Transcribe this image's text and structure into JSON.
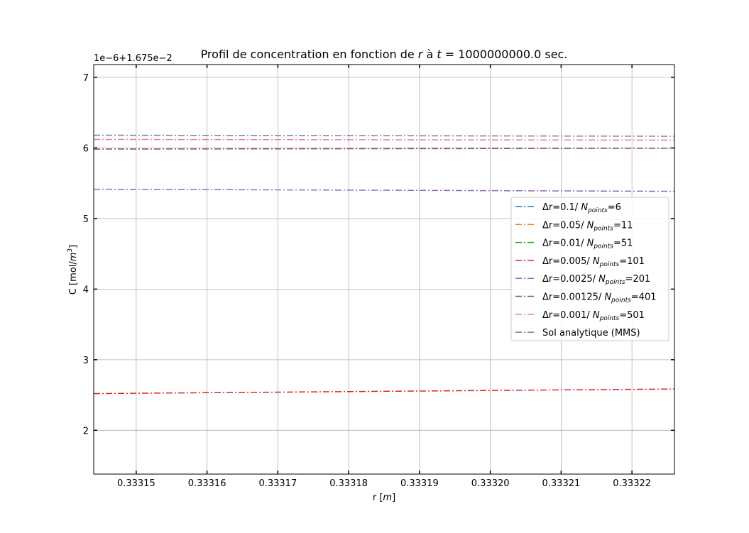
{
  "chart_data": {
    "type": "line",
    "title_prefix": "Profil de concentration en fonction de ",
    "title_r": "r",
    "title_mid": " à ",
    "title_t": "t",
    "title_suffix": " = 1000000000.0 sec.",
    "offset_label": "1e−6+1.675e−2",
    "xlabel_prefix": "r [",
    "xlabel_unit": "m",
    "xlabel_suffix": "]",
    "ylabel_prefix": "C [mol/",
    "ylabel_unit": "m",
    "ylabel_exp": "3",
    "ylabel_suffix": "]",
    "xlim": [
      0.333144,
      0.333226
    ],
    "ylim": [
      1.38,
      7.18
    ],
    "xticks": [
      0.33315,
      0.33316,
      0.33317,
      0.33318,
      0.33319,
      0.3332,
      0.33321,
      0.33322
    ],
    "xtick_labels": [
      "0.33315",
      "0.33316",
      "0.33317",
      "0.33318",
      "0.33319",
      "0.33320",
      "0.33321",
      "0.33322"
    ],
    "yticks": [
      2,
      3,
      4,
      5,
      6,
      7
    ],
    "ytick_labels": [
      "2",
      "3",
      "4",
      "5",
      "6",
      "7"
    ],
    "grid": true,
    "legend_position": "center-right",
    "series": [
      {
        "legend_prefix": "Δr=0.1/ ",
        "legend_n": "N",
        "legend_sub": "points",
        "legend_suffix": "=6",
        "color": "#1f77b4",
        "dash": "dashdot",
        "x": [],
        "y": []
      },
      {
        "legend_prefix": "Δr=0.05/ ",
        "legend_n": "N",
        "legend_sub": "points",
        "legend_suffix": "=11",
        "color": "#ff7f0e",
        "dash": "dashdot",
        "x": [],
        "y": []
      },
      {
        "legend_prefix": "Δr=0.01/ ",
        "legend_n": "N",
        "legend_sub": "points",
        "legend_suffix": "=51",
        "color": "#2ca02c",
        "dash": "dashdot",
        "x": [],
        "y": []
      },
      {
        "legend_prefix": "Δr=0.005/ ",
        "legend_n": "N",
        "legend_sub": "points",
        "legend_suffix": "=101",
        "color": "#d62728",
        "dash": "dashdot",
        "x": [
          0.333144,
          0.333226
        ],
        "y": [
          2.52,
          2.585
        ]
      },
      {
        "legend_prefix": "Δr=0.0025/ ",
        "legend_n": "N",
        "legend_sub": "points",
        "legend_suffix": "=201",
        "color": "#9467bd",
        "dash": "dashdot",
        "x": [
          0.333144,
          0.333226
        ],
        "y": [
          5.415,
          5.385
        ]
      },
      {
        "legend_prefix": "Δr=0.00125/ ",
        "legend_n": "N",
        "legend_sub": "points",
        "legend_suffix": "=401",
        "color": "#8c564b",
        "dash": "dashdot",
        "x": [
          0.333144,
          0.333226
        ],
        "y": [
          5.983,
          5.995
        ]
      },
      {
        "legend_prefix": "Δr=0.001/ ",
        "legend_n": "N",
        "legend_sub": "points",
        "legend_suffix": "=501",
        "color": "#e377c2",
        "dash": "dashdot",
        "x": [
          0.333144,
          0.333226
        ],
        "y": [
          6.12,
          6.11
        ]
      },
      {
        "legend_prefix": "Sol analytique (MMS)",
        "legend_n": "",
        "legend_sub": "",
        "legend_suffix": "",
        "color": "#7f7f7f",
        "dash": "dashdot",
        "x": [
          0.333144,
          0.333226
        ],
        "y": [
          6.18,
          6.165
        ]
      }
    ]
  }
}
